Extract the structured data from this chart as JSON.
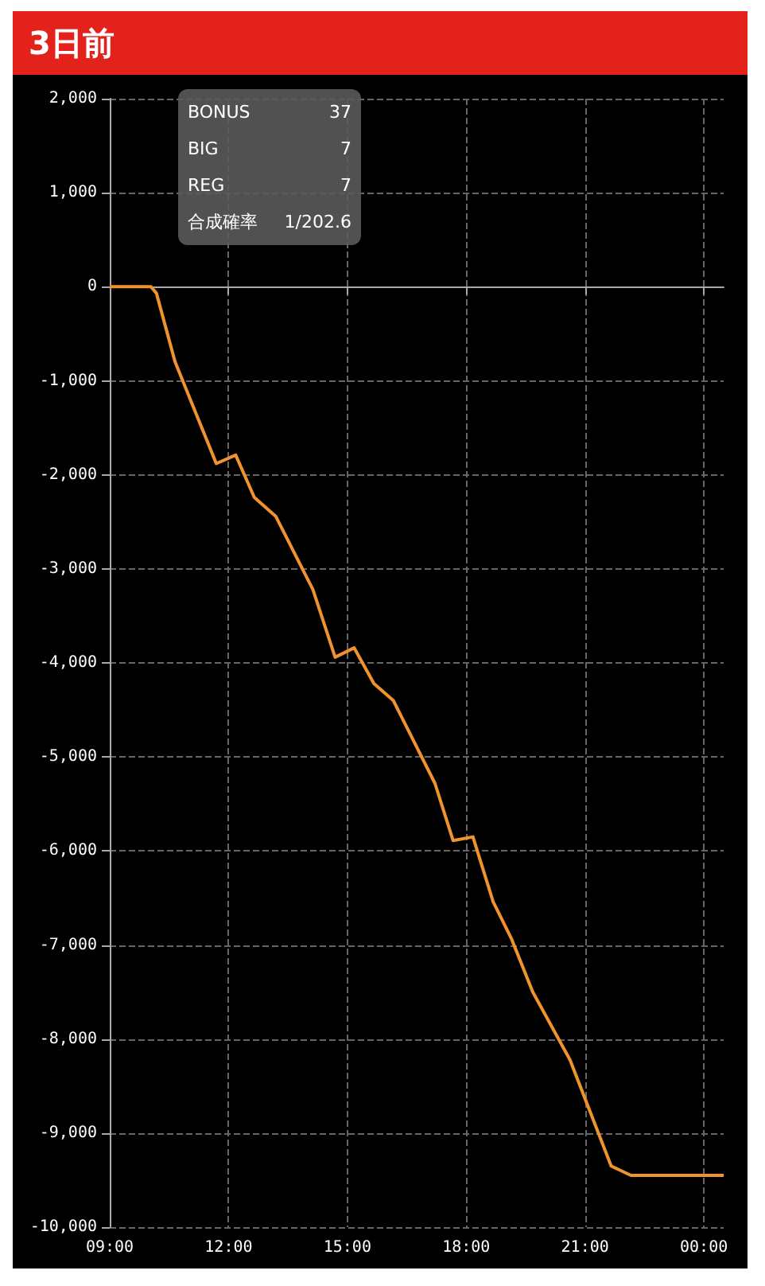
{
  "chart_data": {
    "type": "line",
    "title": "3日前",
    "x": [
      9.0,
      10.04,
      10.18,
      10.65,
      11.69,
      12.18,
      12.65,
      13.19,
      14.13,
      14.69,
      15.17,
      15.67,
      16.16,
      17.21,
      17.67,
      18.17,
      18.68,
      19.15,
      19.68,
      20.62,
      21.66,
      22.16,
      24.5
    ],
    "series": [
      {
        "color": "#f0922e",
        "values": [
          0,
          0,
          -70,
          -800,
          -1880,
          -1790,
          -2240,
          -2440,
          -3220,
          -3940,
          -3840,
          -4220,
          -4400,
          -5280,
          -5890,
          -5850,
          -6540,
          -6940,
          -7500,
          -8220,
          -9350,
          -9450,
          -9450
        ]
      }
    ],
    "xlim": [
      9,
      24.5
    ],
    "xticks": [
      {
        "value": 9,
        "label": "09:00"
      },
      {
        "value": 12,
        "label": "12:00"
      },
      {
        "value": 15,
        "label": "15:00"
      },
      {
        "value": 18,
        "label": "18:00"
      },
      {
        "value": 21,
        "label": "21:00"
      },
      {
        "value": 24,
        "label": "00:00"
      }
    ],
    "ylim": [
      -10000,
      2000
    ],
    "yticks": [
      {
        "value": -10000,
        "label": "-10,000"
      },
      {
        "value": -9000,
        "label": "-9,000"
      },
      {
        "value": -8000,
        "label": "-8,000"
      },
      {
        "value": -7000,
        "label": "-7,000"
      },
      {
        "value": -6000,
        "label": "-6,000"
      },
      {
        "value": -5000,
        "label": "-5,000"
      },
      {
        "value": -4000,
        "label": "-4,000"
      },
      {
        "value": -3000,
        "label": "-3,000"
      },
      {
        "value": -2000,
        "label": "-2,000"
      },
      {
        "value": -1000,
        "label": "-1,000"
      },
      0,
      {
        "value": 1000,
        "label": "1,000"
      },
      {
        "value": 2000,
        "label": "2,000"
      }
    ],
    "annotations": [
      "BONUS",
      "37",
      "BIG",
      "7",
      "REG",
      "7",
      "合成確率",
      "1/202.6"
    ],
    "grid": true,
    "marker": "none",
    "line_style": "solid"
  }
}
